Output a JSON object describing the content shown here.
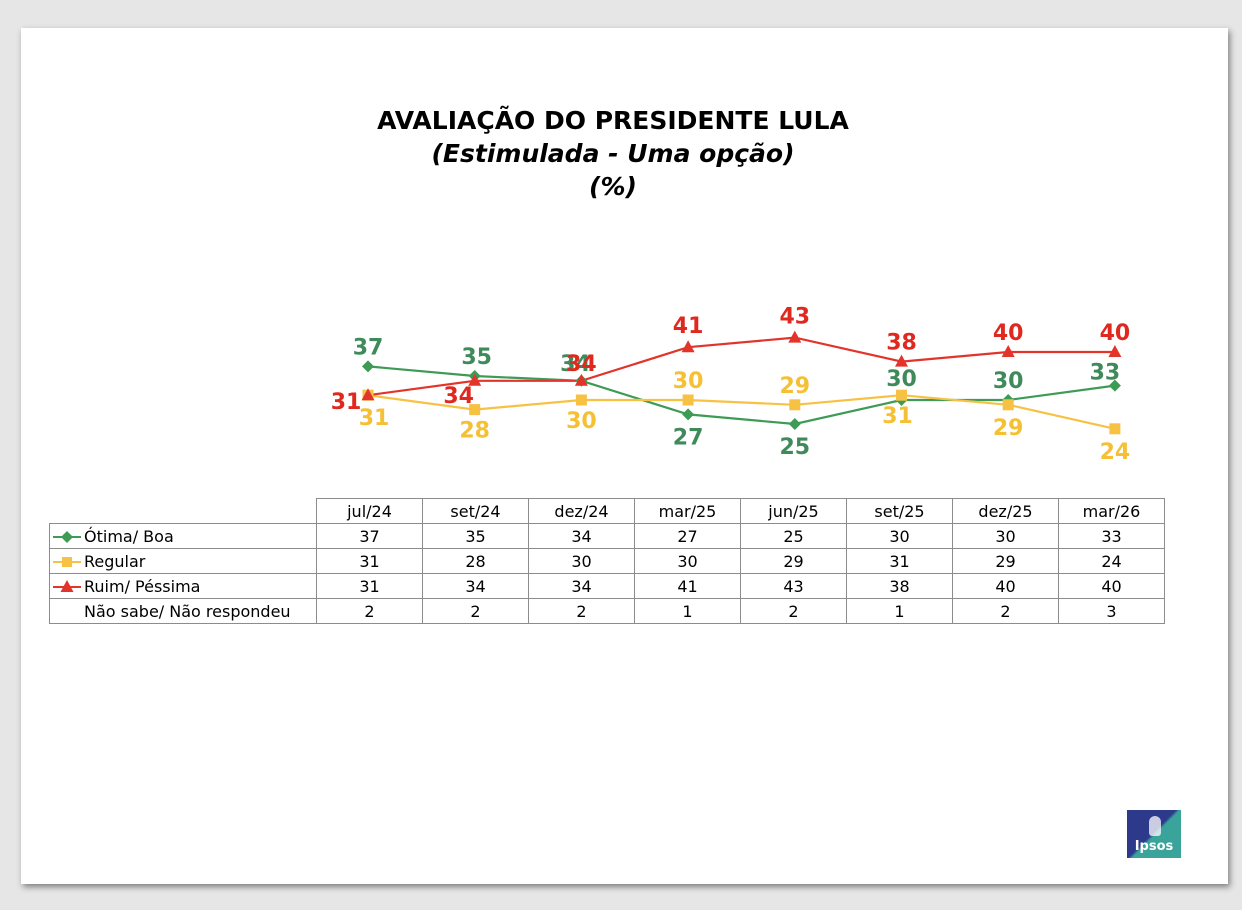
{
  "chart_data": {
    "type": "line",
    "title": "AVALIAÇÃO DO PRESIDENTE LULA",
    "subtitle": "(Estimulada - Uma opção)",
    "unit": "(%)",
    "categories": [
      "jul/24",
      "set/24",
      "dez/24",
      "mar/25",
      "jun/25",
      "set/25",
      "dez/25",
      "mar/26"
    ],
    "ylim": [
      20,
      45
    ],
    "series": [
      {
        "name": "Ótima/ Boa",
        "color": "#3e9b55",
        "label_color": "#3f8a5a",
        "marker": "diamond",
        "plotted": true,
        "values": [
          37,
          35,
          34,
          27,
          25,
          30,
          30,
          33
        ]
      },
      {
        "name": "Regular",
        "color": "#f7c244",
        "label_color": "#f5c034",
        "marker": "square",
        "plotted": true,
        "values": [
          31,
          28,
          30,
          30,
          29,
          31,
          29,
          24
        ]
      },
      {
        "name": "Ruim/ Péssima",
        "color": "#e2342b",
        "label_color": "#e0281f",
        "marker": "triangle",
        "plotted": true,
        "values": [
          31,
          34,
          34,
          41,
          43,
          38,
          40,
          40
        ]
      },
      {
        "name": "Não sabe/ Não respondeu",
        "color": "",
        "label_color": "",
        "marker": "none",
        "plotted": false,
        "values": [
          2,
          2,
          2,
          1,
          2,
          1,
          2,
          3
        ]
      }
    ]
  },
  "logo": {
    "text": "Ipsos"
  }
}
